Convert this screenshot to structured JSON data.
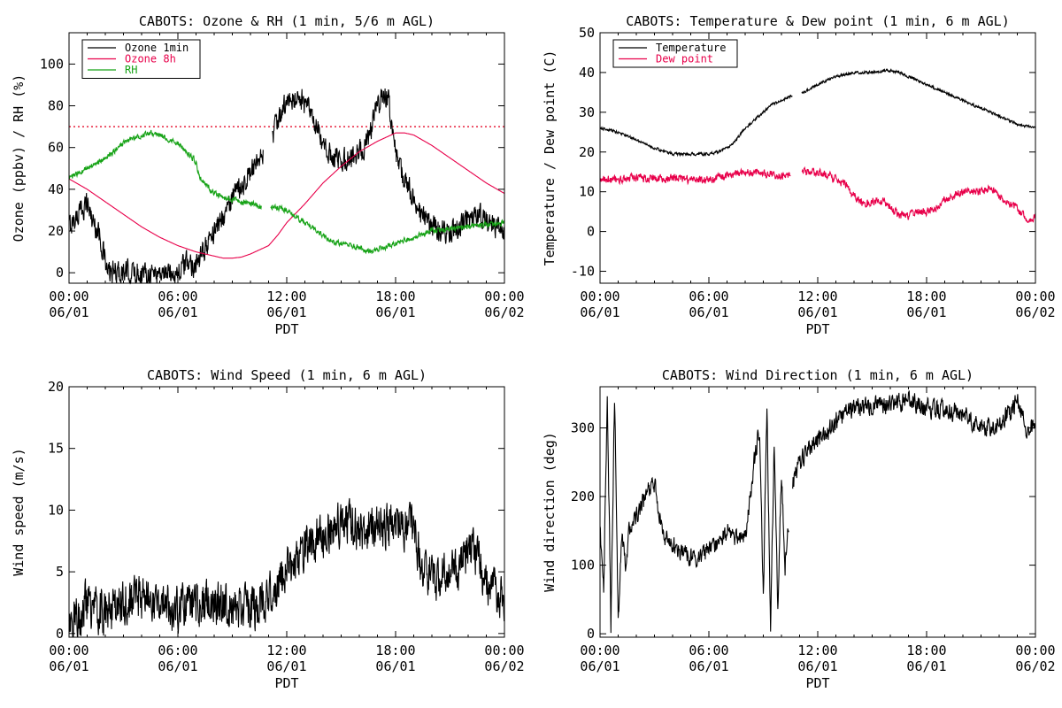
{
  "chart_data": [
    {
      "type": "line",
      "title": "CABOTS: Ozone & RH (1 min, 5/6 m AGL)",
      "xlabel": "PDT",
      "ylabel": "Ozone (ppbv) / RH (%)",
      "x_ticks": [
        {
          "hour": 0,
          "time": "00:00",
          "date": "06/01"
        },
        {
          "hour": 6,
          "time": "06:00",
          "date": "06/01"
        },
        {
          "hour": 12,
          "time": "12:00",
          "date": "06/01"
        },
        {
          "hour": 18,
          "time": "18:00",
          "date": "06/01"
        },
        {
          "hour": 24,
          "time": "00:00",
          "date": "06/02"
        }
      ],
      "xlim": [
        0,
        24
      ],
      "ylim": [
        -5,
        115
      ],
      "y_ticks": [
        0,
        20,
        40,
        60,
        80,
        100
      ],
      "legend_position": "top-left",
      "reference_line": {
        "y": 70,
        "color": "#e8213c",
        "style": "dotted"
      },
      "series": [
        {
          "name": "Ozone 1min",
          "color": "#000000",
          "noise": 5,
          "gaps": [
            [
              10.7,
              11.2
            ]
          ],
          "x": [
            0,
            0.5,
            1,
            1.3,
            1.7,
            2,
            2.1,
            2.3,
            2.6,
            3,
            4,
            5,
            6,
            6.3,
            6.6,
            6.9,
            7.2,
            7.5,
            8,
            8.5,
            9,
            9.5,
            10,
            10.5,
            11,
            11.3,
            11.6,
            11.9,
            12.2,
            12.5,
            12.8,
            13.1,
            13.4,
            13.7,
            14,
            14.5,
            15,
            15.5,
            16,
            16.5,
            17,
            17.3,
            17.6,
            17.9,
            18.1,
            18.3,
            18.6,
            19,
            19.5,
            20,
            20.5,
            21,
            21.5,
            22,
            22.5,
            23,
            23.5,
            24
          ],
          "y": [
            22,
            28,
            34,
            25,
            18,
            5,
            0,
            0,
            0,
            0,
            0,
            0,
            0,
            3,
            5,
            4,
            5,
            12,
            20,
            28,
            35,
            42,
            48,
            52,
            63,
            68,
            74,
            80,
            82,
            84,
            83,
            80,
            74,
            68,
            60,
            56,
            53,
            55,
            58,
            63,
            80,
            85,
            83,
            65,
            52,
            48,
            42,
            37,
            26,
            22,
            20,
            20,
            21,
            26,
            28,
            25,
            22,
            20
          ]
        },
        {
          "name": "Ozone 8h",
          "color": "#e8004a",
          "noise": 0,
          "x": [
            0,
            1,
            2,
            3,
            4,
            5,
            6,
            7,
            8,
            8.5,
            9,
            9.5,
            10,
            10.5,
            11,
            11.5,
            12,
            13,
            14,
            15,
            16,
            17,
            18,
            18.5,
            19,
            20,
            21,
            22,
            23,
            24
          ],
          "y": [
            45,
            40,
            34,
            28,
            22,
            17,
            13,
            10,
            8,
            7,
            7,
            7.5,
            9,
            11,
            13,
            18,
            24,
            33,
            43,
            51,
            58,
            63,
            67,
            67,
            66,
            61,
            55,
            49,
            43,
            38
          ]
        },
        {
          "name": "RH",
          "color": "#17a317",
          "noise": 1.2,
          "gaps": [
            [
              10.6,
              11.1
            ]
          ],
          "x": [
            0,
            1,
            2,
            3,
            4,
            4.5,
            5,
            5.5,
            6,
            6.5,
            7,
            7.2,
            7.6,
            8,
            8.5,
            9,
            9.5,
            10,
            10.5,
            11.2,
            12,
            13,
            14,
            14.5,
            15,
            16,
            16.5,
            17,
            18,
            19,
            20,
            21,
            22,
            23,
            24
          ],
          "y": [
            45,
            50,
            55,
            62,
            66,
            67,
            66,
            64,
            62,
            58,
            53,
            45,
            42,
            38,
            36,
            35,
            34,
            33,
            32,
            32,
            30,
            24,
            18,
            15,
            14,
            12,
            10,
            11,
            14,
            17,
            20,
            21,
            22,
            23,
            24
          ]
        }
      ]
    },
    {
      "type": "line",
      "title": "CABOTS: Temperature & Dew point (1 min, 6 m AGL)",
      "xlabel": "PDT",
      "ylabel": "Temperature / Dew point (C)",
      "x_ticks": [
        {
          "hour": 0,
          "time": "00:00",
          "date": "06/01"
        },
        {
          "hour": 6,
          "time": "06:00",
          "date": "06/01"
        },
        {
          "hour": 12,
          "time": "12:00",
          "date": "06/01"
        },
        {
          "hour": 18,
          "time": "18:00",
          "date": "06/01"
        },
        {
          "hour": 24,
          "time": "00:00",
          "date": "06/02"
        }
      ],
      "xlim": [
        0,
        24
      ],
      "ylim": [
        -13,
        50
      ],
      "y_ticks": [
        -10,
        0,
        10,
        20,
        30,
        40,
        50
      ],
      "legend_position": "top-left",
      "series": [
        {
          "name": "Temperature",
          "color": "#000000",
          "noise": 0.3,
          "gaps": [
            [
              10.6,
              11.1
            ]
          ],
          "x": [
            0,
            1,
            2,
            3,
            4,
            4.5,
            5,
            5.5,
            6,
            6.5,
            7,
            7.5,
            8,
            8.5,
            9,
            9.5,
            10,
            10.5,
            11.2,
            12,
            13,
            14,
            15,
            16,
            16.5,
            17,
            18,
            19,
            20,
            21,
            22,
            23,
            24
          ],
          "y": [
            26,
            25,
            23,
            21,
            19.5,
            19.5,
            19.5,
            19.5,
            19.5,
            20,
            21,
            23,
            26,
            28,
            30,
            32,
            33,
            34,
            35,
            37,
            39,
            40,
            40,
            40.5,
            40,
            39,
            37,
            35,
            33,
            31,
            29,
            27,
            26
          ]
        },
        {
          "name": "Dew point",
          "color": "#e8004a",
          "noise": 0.9,
          "gaps": [
            [
              10.5,
              11.1
            ]
          ],
          "x": [
            0,
            1,
            2,
            3,
            4,
            5,
            6,
            7,
            8,
            8.5,
            9,
            10,
            10.5,
            11.2,
            12,
            12.5,
            13,
            13.5,
            14,
            14.5,
            15,
            15.5,
            16,
            16.5,
            17,
            17.5,
            18,
            18.5,
            19,
            19.5,
            20,
            21,
            21.5,
            22,
            22.5,
            23,
            23.5,
            24
          ],
          "y": [
            13,
            13,
            13.5,
            13.5,
            13.5,
            13,
            13,
            14,
            15,
            15,
            14.5,
            14,
            14,
            15,
            15,
            14.5,
            13,
            12,
            9,
            7,
            7.5,
            8,
            6,
            4,
            4,
            5,
            5,
            6,
            8,
            9,
            10,
            10,
            11,
            9,
            7,
            6,
            3,
            3.5
          ]
        }
      ]
    },
    {
      "type": "line",
      "title": "CABOTS: Wind Speed (1 min, 6 m AGL)",
      "xlabel": "PDT",
      "ylabel": "Wind speed (m/s)",
      "x_ticks": [
        {
          "hour": 0,
          "time": "00:00",
          "date": "06/01"
        },
        {
          "hour": 6,
          "time": "06:00",
          "date": "06/01"
        },
        {
          "hour": 12,
          "time": "12:00",
          "date": "06/01"
        },
        {
          "hour": 18,
          "time": "18:00",
          "date": "06/01"
        },
        {
          "hour": 24,
          "time": "00:00",
          "date": "06/02"
        }
      ],
      "xlim": [
        0,
        24
      ],
      "ylim": [
        -0.3,
        20
      ],
      "y_ticks": [
        0,
        5,
        10,
        15,
        20
      ],
      "series": [
        {
          "name": "",
          "color": "#000000",
          "noise": 1.6,
          "x": [
            0,
            0.5,
            1,
            1.5,
            2,
            3,
            4,
            5,
            6,
            7,
            8,
            9,
            10,
            10.5,
            11,
            11.5,
            12,
            13,
            14,
            15,
            16,
            17,
            18,
            19,
            19.5,
            20,
            21,
            21.5,
            22,
            22.5,
            23,
            24
          ],
          "y": [
            1,
            1.5,
            2.5,
            2,
            1.5,
            2.5,
            3,
            2.5,
            2,
            2.5,
            2.5,
            2,
            2,
            2.5,
            3,
            4,
            5,
            7,
            8,
            9,
            8.5,
            8.5,
            9,
            8.5,
            5,
            4.5,
            5,
            5,
            7,
            6,
            4,
            3
          ]
        }
      ]
    },
    {
      "type": "line",
      "title": "CABOTS: Wind Direction (1 min, 6 m AGL)",
      "xlabel": "PDT",
      "ylabel": "Wind direction (deg)",
      "x_ticks": [
        {
          "hour": 0,
          "time": "00:00",
          "date": "06/01"
        },
        {
          "hour": 6,
          "time": "06:00",
          "date": "06/01"
        },
        {
          "hour": 12,
          "time": "12:00",
          "date": "06/01"
        },
        {
          "hour": 18,
          "time": "18:00",
          "date": "06/01"
        },
        {
          "hour": 24,
          "time": "00:00",
          "date": "06/02"
        }
      ],
      "xlim": [
        0,
        24
      ],
      "ylim": [
        -5,
        360
      ],
      "y_ticks": [
        0,
        100,
        200,
        300
      ],
      "series": [
        {
          "name": "",
          "color": "#000000",
          "noise": 12,
          "gaps": [
            [
              10.4,
              10.6
            ]
          ],
          "x": [
            0,
            0.2,
            0.4,
            0.6,
            0.8,
            1,
            1.2,
            1.4,
            1.6,
            2,
            2.5,
            3,
            3.5,
            4,
            5,
            6,
            7,
            7.5,
            8,
            8.5,
            8.8,
            9,
            9.2,
            9.4,
            9.6,
            9.8,
            10,
            10.2,
            10.6,
            11,
            11.5,
            12,
            13,
            14,
            15,
            16,
            17,
            18,
            19,
            20,
            21,
            22,
            22.5,
            23,
            23.5,
            24
          ],
          "y": [
            150,
            60,
            350,
            10,
            350,
            20,
            140,
            100,
            150,
            170,
            200,
            220,
            140,
            130,
            110,
            120,
            150,
            140,
            140,
            250,
            300,
            50,
            330,
            10,
            280,
            40,
            240,
            100,
            220,
            250,
            270,
            280,
            310,
            330,
            330,
            335,
            340,
            330,
            325,
            320,
            300,
            305,
            320,
            340,
            300,
            300
          ]
        }
      ]
    }
  ]
}
